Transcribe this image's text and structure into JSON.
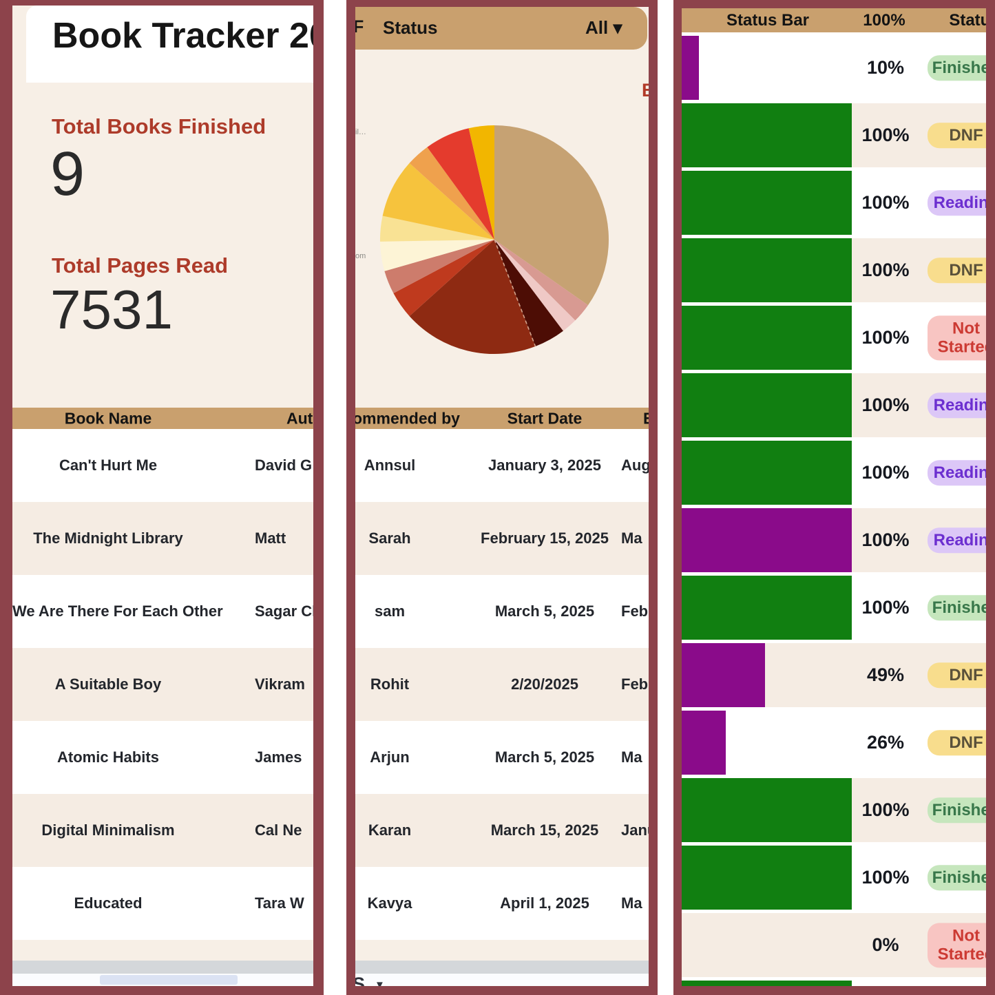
{
  "colors": {
    "border": "#8d434b",
    "cream": "#f7efe6",
    "row_alt": "#f5ece3",
    "tan_header": "#c9a06e",
    "accent_red": "#ad3b2a",
    "green_bar": "#117f11",
    "purple_bar": "#8a0b8a",
    "scroll_track": "#d4d7da",
    "scroll_thumb": "#dbe2f3",
    "pills": {
      "Finished": {
        "bg": "#c6e6bd",
        "fg": "#38774a"
      },
      "DNF": {
        "bg": "#f8dd8d",
        "fg": "#5a513a"
      },
      "Reading": {
        "bg": "#dcc7f7",
        "fg": "#6c2fd0"
      },
      "Not Started": {
        "bg": "#f8c5c2",
        "fg": "#cc3a33"
      }
    }
  },
  "panel1": {
    "title": "Book Tracker 20",
    "stats": [
      {
        "label": "Total Books Finished",
        "value": "9"
      },
      {
        "label": "Total Pages Read",
        "value": "7531"
      }
    ],
    "table": {
      "headers": [
        "Book Name",
        "Aut"
      ],
      "rows": [
        {
          "book": "Can't Hurt Me",
          "author": "David G"
        },
        {
          "book": "The Midnight Library",
          "author": "Matt"
        },
        {
          "book": "We Are There For Each Other",
          "author": "Sagar Ch"
        },
        {
          "book": "A Suitable Boy",
          "author": "Vikram"
        },
        {
          "book": "Atomic Habits",
          "author": "James"
        },
        {
          "book": "Digital Minimalism",
          "author": "Cal Ne"
        },
        {
          "book": "Educated",
          "author": "Tara W"
        }
      ]
    }
  },
  "panel2": {
    "header": {
      "left_fragment": "F",
      "label": "Status",
      "dropdown": "All ▾"
    },
    "chart_title_fragment": "B",
    "left_fragments": [
      "il…",
      "om"
    ],
    "table": {
      "headers": [
        "ommended by",
        "Start Date",
        "E"
      ],
      "rows": [
        {
          "recommended_by": "Annsul",
          "start_date": "January 3, 2025",
          "end_fragment": "Aug"
        },
        {
          "recommended_by": "Sarah",
          "start_date": "February 15, 2025",
          "end_fragment": "Ma"
        },
        {
          "recommended_by": "sam",
          "start_date": "March 5, 2025",
          "end_fragment": "Febr"
        },
        {
          "recommended_by": "Rohit",
          "start_date": "2/20/2025",
          "end_fragment": "Febr"
        },
        {
          "recommended_by": "Arjun",
          "start_date": "March 5, 2025",
          "end_fragment": "Ma"
        },
        {
          "recommended_by": "Karan",
          "start_date": "March 15, 2025",
          "end_fragment": "Janu"
        },
        {
          "recommended_by": "Kavya",
          "start_date": "April 1, 2025",
          "end_fragment": "Ma"
        }
      ]
    },
    "bottom_fragment": {
      "label": "S",
      "arrow": "▼"
    }
  },
  "panel3": {
    "headers": [
      "Status Bar",
      "100%",
      "Status"
    ],
    "rows": [
      {
        "percent": "10%",
        "fraction": 0.1,
        "bar": "purple",
        "status": "Finished"
      },
      {
        "percent": "100%",
        "fraction": 1,
        "bar": "green",
        "status": "DNF"
      },
      {
        "percent": "100%",
        "fraction": 1,
        "bar": "green",
        "status": "Reading"
      },
      {
        "percent": "100%",
        "fraction": 1,
        "bar": "green",
        "status": "DNF"
      },
      {
        "percent": "100%",
        "fraction": 1,
        "bar": "green",
        "status": "Not Started"
      },
      {
        "percent": "100%",
        "fraction": 1,
        "bar": "green",
        "status": "Reading"
      },
      {
        "percent": "100%",
        "fraction": 1,
        "bar": "green",
        "status": "Reading"
      },
      {
        "percent": "100%",
        "fraction": 1,
        "bar": "purple",
        "status": "Reading"
      },
      {
        "percent": "100%",
        "fraction": 1,
        "bar": "green",
        "status": "Finished"
      },
      {
        "percent": "49%",
        "fraction": 0.49,
        "bar": "purple",
        "status": "DNF"
      },
      {
        "percent": "26%",
        "fraction": 0.26,
        "bar": "purple",
        "status": "DNF"
      },
      {
        "percent": "100%",
        "fraction": 1,
        "bar": "green",
        "status": "Finished"
      },
      {
        "percent": "100%",
        "fraction": 1,
        "bar": "green",
        "status": "Finished"
      },
      {
        "percent": "0%",
        "fraction": 0,
        "bar": "none",
        "status": "Not Started"
      }
    ],
    "partial_row": {
      "fraction": 1,
      "bar": "green"
    }
  },
  "chart_data": {
    "type": "pie",
    "labels_visible": false,
    "legend_position": "cropped-off-left",
    "slices": [
      {
        "color": "#c6a273",
        "start_deg": 0,
        "end_deg": 125,
        "pct": 34.7
      },
      {
        "color": "#d89a92",
        "start_deg": 125,
        "end_deg": 135,
        "pct": 2.8
      },
      {
        "color": "#efc9c6",
        "start_deg": 135,
        "end_deg": 143,
        "pct": 2.2
      },
      {
        "color": "#4d0d05",
        "start_deg": 143,
        "end_deg": 159,
        "pct": 4.4
      },
      {
        "color": "#8e2a12",
        "start_deg": 159,
        "end_deg": 228,
        "pct": 19.2,
        "dashed_start_edge": true
      },
      {
        "color": "#bf3a1e",
        "start_deg": 228,
        "end_deg": 242,
        "pct": 3.9
      },
      {
        "color": "#cd7c6c",
        "start_deg": 242,
        "end_deg": 254,
        "pct": 3.3
      },
      {
        "color": "#fdf4d6",
        "start_deg": 254,
        "end_deg": 269,
        "pct": 4.2
      },
      {
        "color": "#f9e294",
        "start_deg": 269,
        "end_deg": 282,
        "pct": 3.6
      },
      {
        "color": "#f6c33d",
        "start_deg": 282,
        "end_deg": 312,
        "pct": 8.3
      },
      {
        "color": "#efa14d",
        "start_deg": 312,
        "end_deg": 324,
        "pct": 3.3
      },
      {
        "color": "#e43b2d",
        "start_deg": 324,
        "end_deg": 347,
        "pct": 6.4
      },
      {
        "color": "#f2b600",
        "start_deg": 347,
        "end_deg": 360,
        "pct": 3.6
      }
    ]
  }
}
